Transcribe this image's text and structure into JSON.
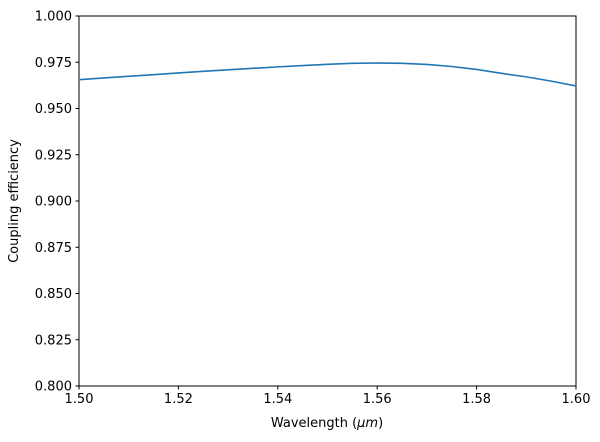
{
  "chart_data": {
    "type": "line",
    "title": "",
    "xlabel": "Wavelength (μm)",
    "xlabel_parts": {
      "prefix": "Wavelength (",
      "italic": "μm",
      "suffix": ")"
    },
    "ylabel": "Coupling efficiency",
    "xlim": [
      1.5,
      1.6
    ],
    "ylim": [
      0.8,
      1.0
    ],
    "grid": false,
    "legend": "none",
    "xticks": [
      {
        "v": 1.5,
        "label": "1.50"
      },
      {
        "v": 1.52,
        "label": "1.52"
      },
      {
        "v": 1.54,
        "label": "1.54"
      },
      {
        "v": 1.56,
        "label": "1.56"
      },
      {
        "v": 1.58,
        "label": "1.58"
      },
      {
        "v": 1.6,
        "label": "1.60"
      }
    ],
    "yticks": [
      {
        "v": 0.8,
        "label": "0.800"
      },
      {
        "v": 0.825,
        "label": "0.825"
      },
      {
        "v": 0.85,
        "label": "0.850"
      },
      {
        "v": 0.875,
        "label": "0.875"
      },
      {
        "v": 0.9,
        "label": "0.900"
      },
      {
        "v": 0.925,
        "label": "0.925"
      },
      {
        "v": 0.95,
        "label": "0.950"
      },
      {
        "v": 0.975,
        "label": "0.975"
      },
      {
        "v": 1.0,
        "label": "1.000"
      }
    ],
    "series": [
      {
        "name": "coupling-efficiency",
        "color": "#1f77b4",
        "line_width": 1.6,
        "x": [
          1.5,
          1.505,
          1.51,
          1.515,
          1.52,
          1.525,
          1.53,
          1.535,
          1.54,
          1.545,
          1.55,
          1.555,
          1.56,
          1.565,
          1.57,
          1.575,
          1.58,
          1.585,
          1.59,
          1.595,
          1.6
        ],
        "y": [
          0.9656,
          0.9665,
          0.9674,
          0.9683,
          0.9692,
          0.9701,
          0.9709,
          0.9717,
          0.9725,
          0.9732,
          0.9739,
          0.9744,
          0.9746,
          0.9744,
          0.9738,
          0.9727,
          0.9711,
          0.969,
          0.9671,
          0.9648,
          0.9622
        ]
      }
    ],
    "peak": {
      "x": 1.556,
      "y": 0.9746
    }
  },
  "colors": {
    "background": "#ffffff",
    "spine": "#000000",
    "tick": "#000000",
    "line": "#1f77b4"
  }
}
